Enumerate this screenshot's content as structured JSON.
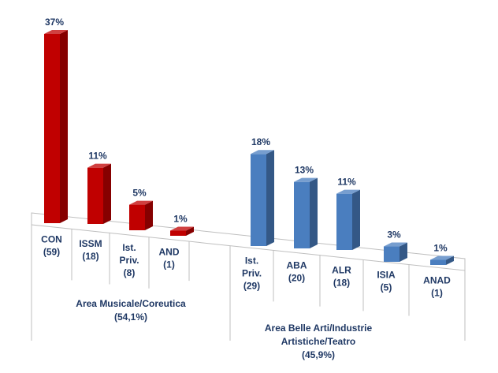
{
  "chart_data": {
    "type": "bar",
    "groups": [
      {
        "name_lines": [
          "Area Musicale/Coreutica",
          "(54,1%)"
        ],
        "color": "#c00000",
        "categories": [
          {
            "label_lines": [
              "CON",
              "(59)"
            ],
            "value": 37,
            "label": "37%"
          },
          {
            "label_lines": [
              "ISSM",
              "(18)"
            ],
            "value": 11,
            "label": "11%"
          },
          {
            "label_lines": [
              "Ist.",
              "Priv.",
              "(8)"
            ],
            "value": 5,
            "label": "5%"
          },
          {
            "label_lines": [
              "AND",
              "(1)"
            ],
            "value": 1,
            "label": "1%"
          }
        ]
      },
      {
        "name_lines": [
          "Area Belle Arti/Industrie",
          "Artistiche/Teatro",
          "(45,9%)"
        ],
        "color": "#4a7ebf",
        "categories": [
          {
            "label_lines": [
              "Ist.",
              "Priv.",
              "(29)"
            ],
            "value": 18,
            "label": "18%"
          },
          {
            "label_lines": [
              "ABA",
              "(20)"
            ],
            "value": 13,
            "label": "13%"
          },
          {
            "label_lines": [
              "ALR",
              "(18)"
            ],
            "value": 11,
            "label": "11%"
          },
          {
            "label_lines": [
              "ISIA",
              "(5)"
            ],
            "value": 3,
            "label": "3%"
          },
          {
            "label_lines": [
              "ANAD",
              "(1)"
            ],
            "value": 1,
            "label": "1%"
          }
        ]
      }
    ],
    "value_label_color": "#1f3864",
    "ylim": [
      0,
      40
    ]
  }
}
